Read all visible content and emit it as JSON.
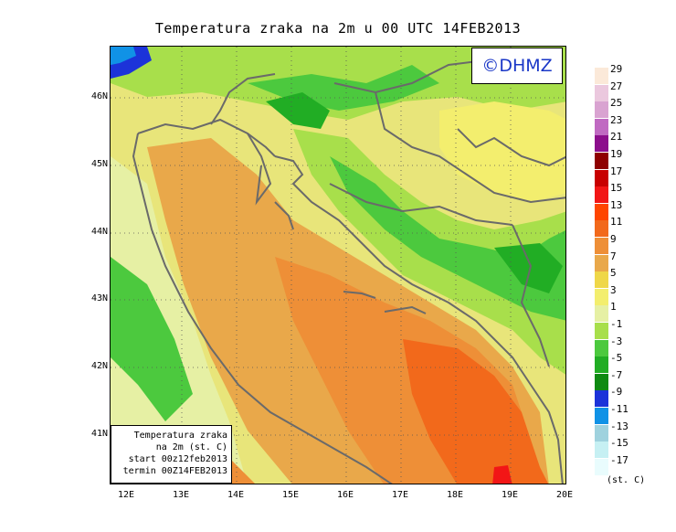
{
  "title": "Temperatura zraka na 2m u 00 UTC 14FEB2013",
  "logo": "©DHMZ",
  "info_box": {
    "line1": "Temperatura zraka",
    "line2": "na 2m (st. C)",
    "line3": "start 00z12feb2013",
    "line4": "termin 00Z14FEB2013"
  },
  "lat_labels": [
    "46N",
    "45N",
    "44N",
    "43N",
    "42N",
    "41N"
  ],
  "lon_labels": [
    "12E",
    "13E",
    "14E",
    "15E",
    "16E",
    "17E",
    "18E",
    "19E",
    "20E"
  ],
  "legend": {
    "units": "(st. C)",
    "labels": [
      "29",
      "27",
      "25",
      "23",
      "21",
      "19",
      "17",
      "15",
      "13",
      "11",
      "9",
      "7",
      "5",
      "3",
      "1",
      "-1",
      "-3",
      "-5",
      "-7",
      "-9",
      "-11",
      "-13",
      "-15",
      "-17"
    ],
    "colors": [
      "#fbe9d9",
      "#ebc8de",
      "#d9a3d1",
      "#c06ac2",
      "#8c0e8c",
      "#8e0000",
      "#c80000",
      "#f21616",
      "#ff4500",
      "#f2691b",
      "#ee8f37",
      "#e9a84a",
      "#efd748",
      "#f3ee6e",
      "#e6f0a4",
      "#a8df4b",
      "#4cc93e",
      "#21ad24",
      "#0f8a12",
      "#1c33d9",
      "#1092e6",
      "#9fd2de",
      "#c6f0f3",
      "#e9fcfd"
    ]
  },
  "colors": {
    "coast": "#6a6a6a",
    "grid": "#555555"
  }
}
